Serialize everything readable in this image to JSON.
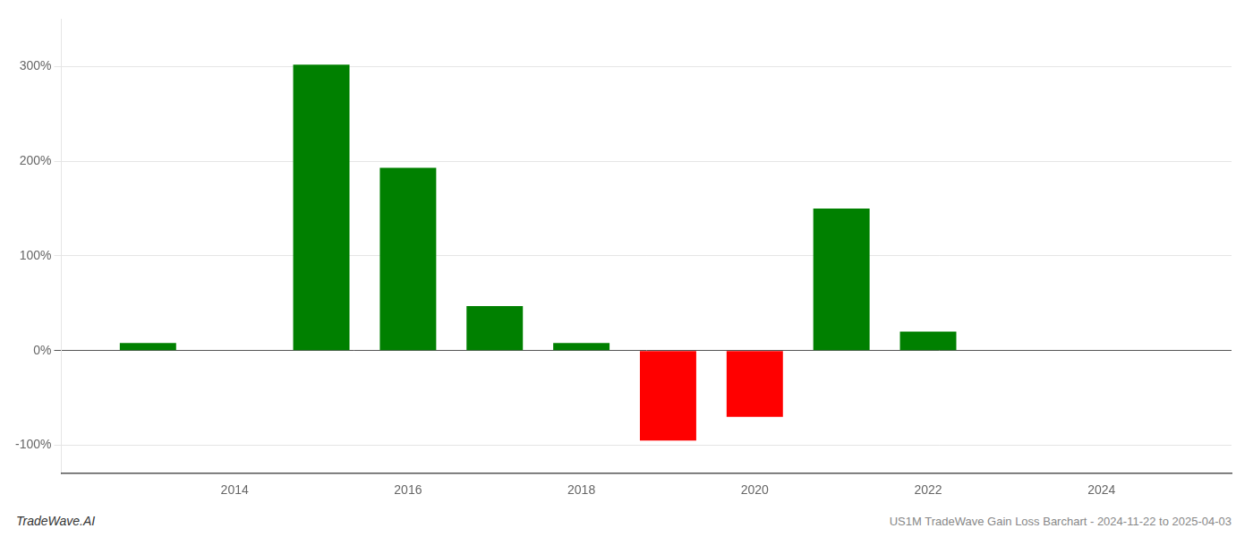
{
  "chart_data": {
    "type": "bar",
    "x": [
      2013,
      2015,
      2016,
      2017,
      2018,
      2019,
      2020,
      2021,
      2022,
      2023
    ],
    "values": [
      8,
      302,
      193,
      47,
      8,
      -95,
      -70,
      150,
      20,
      0
    ],
    "colors": [
      "#008000",
      "#008000",
      "#008000",
      "#008000",
      "#008000",
      "#ff0000",
      "#ff0000",
      "#008000",
      "#008000",
      "#008000"
    ],
    "xlim": [
      2012.0,
      2025.5
    ],
    "xticks": [
      2014,
      2016,
      2018,
      2020,
      2022,
      2024
    ],
    "ylim": [
      -130,
      350
    ],
    "yticks": [
      {
        "value": -100,
        "label": "-100%"
      },
      {
        "value": 0,
        "label": "0%"
      },
      {
        "value": 100,
        "label": "100%"
      },
      {
        "value": 200,
        "label": "200%"
      },
      {
        "value": 300,
        "label": "300%"
      }
    ],
    "grid": "y",
    "annotations": [
      "TradeWave.AI",
      "US1M TradeWave Gain Loss Barchart - 2024-11-22 to 2025-04-03"
    ]
  }
}
